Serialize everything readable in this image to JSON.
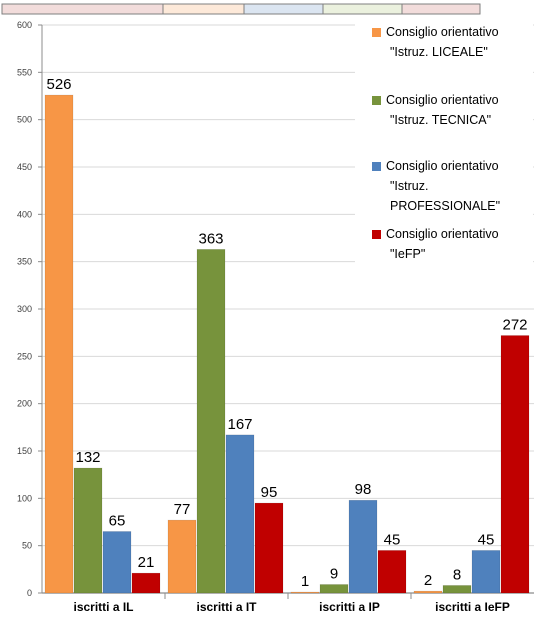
{
  "chart_data": {
    "type": "bar",
    "categories": [
      "iscritti a IL",
      "iscritti a IT",
      "iscritti a IP",
      "iscritti a IeFP"
    ],
    "series": [
      {
        "name": "Consiglio orientativo \"Istruz. LICEALE\"",
        "color": "#f79646",
        "values": [
          526,
          77,
          1,
          2
        ],
        "legend_lines": [
          "Consiglio orientativo",
          "\"Istruz. LICEALE\""
        ]
      },
      {
        "name": "Consiglio orientativo \"Istruz. TECNICA\"",
        "color": "#77933c",
        "values": [
          132,
          363,
          9,
          8
        ],
        "legend_lines": [
          "Consiglio orientativo",
          "\"Istruz. TECNICA\""
        ]
      },
      {
        "name": "Consiglio orientativo \"Istruz. PROFESSIONALE\"",
        "color": "#4f81bd",
        "values": [
          65,
          167,
          98,
          45
        ],
        "legend_lines": [
          "Consiglio orientativo",
          "\"Istruz.",
          "PROFESSIONALE\""
        ]
      },
      {
        "name": "Consiglio orientativo \"IeFP\"",
        "color": "#c00000",
        "values": [
          21,
          95,
          45,
          272
        ],
        "legend_lines": [
          "Consiglio orientativo",
          "\"IeFP\""
        ]
      }
    ],
    "yticks": [
      "0",
      "50",
      "100",
      "150",
      "200",
      "250",
      "300",
      "350",
      "400",
      "450",
      "500",
      "550",
      "600"
    ],
    "ylim": [
      0,
      600
    ],
    "grid": true,
    "legend_position": "top-right",
    "top_strip_colors": [
      "#f2dcdb",
      "#fde9d9",
      "#dbe5f1",
      "#ebf1de",
      "#f2dcdb"
    ]
  }
}
